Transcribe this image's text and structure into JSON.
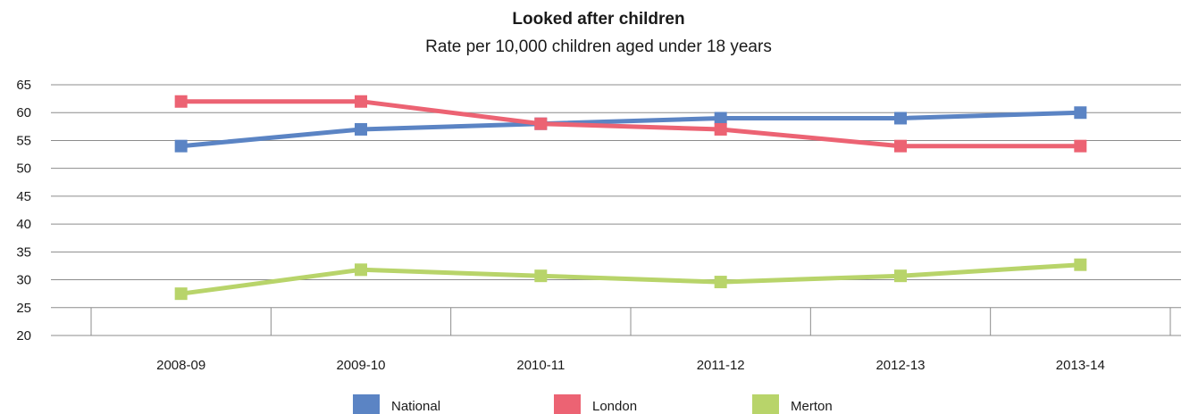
{
  "chart_data": {
    "type": "line",
    "title": "Looked after children",
    "subtitle": "Rate per 10,000 children aged under 18 years",
    "xlabel": "",
    "ylabel": "",
    "categories": [
      "2008-09",
      "2009-10",
      "2010-11",
      "2011-12",
      "2012-13",
      "2013-14"
    ],
    "ylim": [
      20,
      65
    ],
    "yticks": [
      20,
      25,
      30,
      35,
      40,
      45,
      50,
      55,
      60,
      65
    ],
    "grid": true,
    "legend_position": "bottom",
    "series": [
      {
        "name": "National",
        "color": "#5b84c4",
        "values": [
          54,
          57,
          58,
          59,
          59,
          60
        ]
      },
      {
        "name": "London",
        "color": "#ec6373",
        "values": [
          62,
          62,
          58,
          57,
          54,
          54
        ]
      },
      {
        "name": "Merton",
        "color": "#b8d46a",
        "values": [
          27.5,
          31.8,
          30.7,
          29.6,
          30.7,
          32.7
        ]
      }
    ]
  }
}
